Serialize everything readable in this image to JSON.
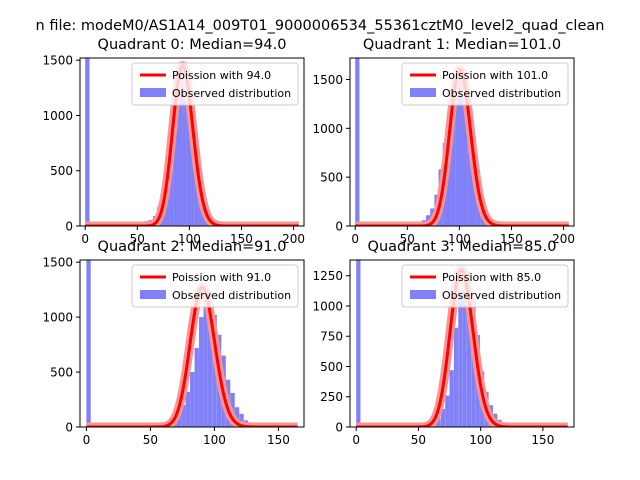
{
  "figure": {
    "suptitle": "n file: modeM0/AS1A14_009T01_9000006534_55361cztM0_level2_quad_clean"
  },
  "chart_data": [
    {
      "type": "bar",
      "title": "Quadrant 0: Median=94.0",
      "xlabel": "",
      "ylabel": "",
      "xlim": [
        -5,
        210
      ],
      "ylim": [
        0,
        1520
      ],
      "xticks": [
        0,
        50,
        100,
        150,
        200
      ],
      "yticks": [
        0,
        500,
        1000,
        1500
      ],
      "legend_position": "upper right",
      "fit": {
        "name": "Poission with 94.0",
        "mean": 94.0,
        "color": "#ff0000"
      },
      "hist": {
        "name": "Observed distribution",
        "color": "#8080f8",
        "bin_width": 4.1,
        "bins": [
          [
            0,
            1520
          ],
          [
            45,
            10
          ],
          [
            49,
            15
          ],
          [
            53,
            30
          ],
          [
            57,
            45
          ],
          [
            61,
            55
          ],
          [
            65,
            90
          ],
          [
            69,
            170
          ],
          [
            73,
            310
          ],
          [
            77,
            520
          ],
          [
            81,
            770
          ],
          [
            85,
            1040
          ],
          [
            89,
            1340
          ],
          [
            93,
            1450
          ],
          [
            97,
            1380
          ],
          [
            101,
            1060
          ],
          [
            105,
            780
          ],
          [
            109,
            400
          ],
          [
            113,
            240
          ],
          [
            117,
            110
          ],
          [
            121,
            60
          ],
          [
            125,
            25
          ],
          [
            129,
            10
          ],
          [
            133,
            5
          ]
        ]
      }
    },
    {
      "type": "bar",
      "title": "Quadrant 1: Median=101.0",
      "xlabel": "",
      "ylabel": "",
      "xlim": [
        -5,
        210
      ],
      "ylim": [
        0,
        1720
      ],
      "xticks": [
        0,
        50,
        100,
        150,
        200
      ],
      "yticks": [
        0,
        500,
        1000,
        1500
      ],
      "legend_position": "upper right",
      "fit": {
        "name": "Poission with 101.0",
        "mean": 101.0,
        "color": "#ff0000"
      },
      "hist": {
        "name": "Observed distribution",
        "color": "#8080f8",
        "bin_width": 4.1,
        "bins": [
          [
            0,
            1720
          ],
          [
            52,
            10
          ],
          [
            56,
            20
          ],
          [
            60,
            35
          ],
          [
            64,
            60
          ],
          [
            68,
            110
          ],
          [
            72,
            180
          ],
          [
            76,
            320
          ],
          [
            80,
            580
          ],
          [
            84,
            850
          ],
          [
            88,
            1150
          ],
          [
            92,
            1290
          ],
          [
            96,
            1520
          ],
          [
            100,
            1600
          ],
          [
            104,
            1180
          ],
          [
            108,
            870
          ],
          [
            112,
            540
          ],
          [
            116,
            270
          ],
          [
            120,
            150
          ],
          [
            124,
            70
          ],
          [
            128,
            40
          ],
          [
            132,
            20
          ],
          [
            136,
            10
          ]
        ]
      }
    },
    {
      "type": "bar",
      "title": "Quadrant 2: Median=91.0",
      "xlabel": "",
      "ylabel": "",
      "xlim": [
        -5,
        170
      ],
      "ylim": [
        0,
        1520
      ],
      "xticks": [
        0,
        50,
        100,
        150
      ],
      "yticks": [
        0,
        500,
        1000,
        1500
      ],
      "legend_position": "upper right",
      "fit": {
        "name": "Poission with 91.0",
        "mean": 91.0,
        "color": "#ff0000"
      },
      "hist": {
        "name": "Observed distribution",
        "color": "#8080f8",
        "bin_width": 3.4,
        "bins": [
          [
            0,
            1520
          ],
          [
            53,
            10
          ],
          [
            56.5,
            20
          ],
          [
            60,
            30
          ],
          [
            63.5,
            50
          ],
          [
            67,
            80
          ],
          [
            70.5,
            130
          ],
          [
            74,
            200
          ],
          [
            77.5,
            320
          ],
          [
            81,
            500
          ],
          [
            84.5,
            720
          ],
          [
            88,
            1000
          ],
          [
            91.5,
            1270
          ],
          [
            95,
            1210
          ],
          [
            98.5,
            1020
          ],
          [
            102,
            840
          ],
          [
            105.5,
            650
          ],
          [
            109,
            430
          ],
          [
            112.5,
            310
          ],
          [
            116,
            180
          ],
          [
            119.5,
            120
          ],
          [
            123,
            60
          ],
          [
            126.5,
            30
          ],
          [
            130,
            15
          ]
        ]
      }
    },
    {
      "type": "bar",
      "title": "Quadrant 3: Median=85.0",
      "xlabel": "",
      "ylabel": "",
      "xlim": [
        -5,
        175
      ],
      "ylim": [
        0,
        1380
      ],
      "xticks": [
        0,
        50,
        100,
        150
      ],
      "yticks": [
        0,
        250,
        500,
        750,
        1000,
        1250
      ],
      "legend_position": "upper right",
      "fit": {
        "name": "Poission with 85.0",
        "mean": 85.0,
        "color": "#ff0000"
      },
      "hist": {
        "name": "Observed distribution",
        "color": "#8080f8",
        "bin_width": 3.4,
        "bins": [
          [
            0,
            1380
          ],
          [
            41,
            5
          ],
          [
            45,
            10
          ],
          [
            49,
            15
          ],
          [
            53,
            20
          ],
          [
            57,
            25
          ],
          [
            61,
            40
          ],
          [
            64.5,
            70
          ],
          [
            68,
            150
          ],
          [
            71.5,
            260
          ],
          [
            75,
            470
          ],
          [
            78.5,
            820
          ],
          [
            82,
            1120
          ],
          [
            85.5,
            1300
          ],
          [
            89,
            1280
          ],
          [
            92.5,
            1060
          ],
          [
            96,
            760
          ],
          [
            99.5,
            460
          ],
          [
            103,
            290
          ],
          [
            106.5,
            180
          ],
          [
            110,
            110
          ],
          [
            113.5,
            60
          ],
          [
            117,
            30
          ],
          [
            120.5,
            10
          ]
        ]
      }
    }
  ]
}
